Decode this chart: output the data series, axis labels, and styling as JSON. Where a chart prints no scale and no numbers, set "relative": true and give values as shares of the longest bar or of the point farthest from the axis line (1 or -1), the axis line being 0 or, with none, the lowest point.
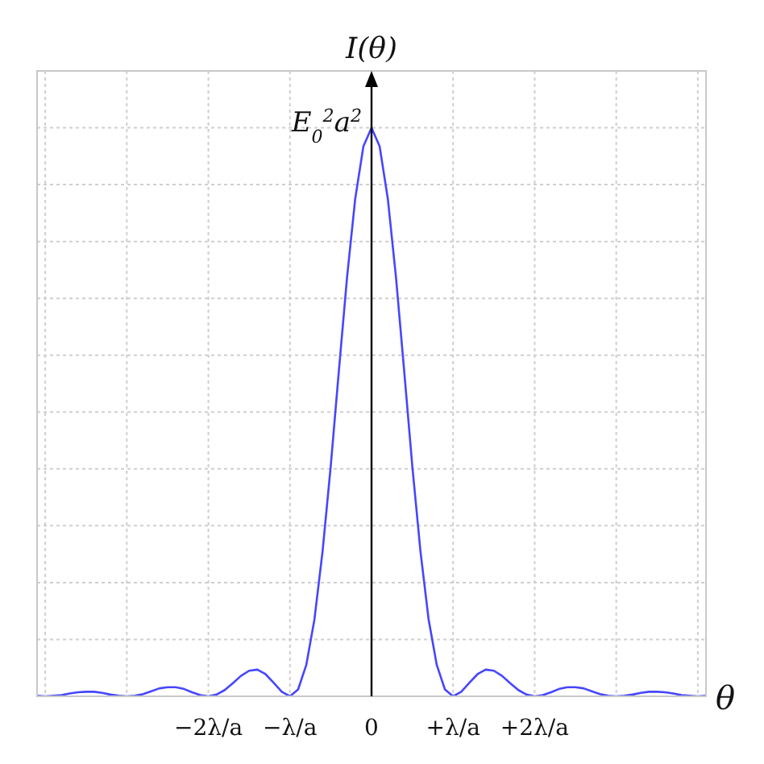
{
  "chart_data": {
    "type": "line",
    "relative": true,
    "xlabel": "θ",
    "ylabel": "I(θ)",
    "annotations": [
      {
        "text": "E$_{0}$$^{2}$a$^{2}$",
        "x": "0",
        "y": 1
      }
    ],
    "grid": true,
    "marker": "none",
    "line_style": "solid",
    "categories": [
      null,
      null,
      null,
      null,
      null,
      null,
      null,
      null,
      null,
      null,
      null,
      null,
      null,
      null,
      null,
      null,
      null,
      null,
      null,
      null,
      null,
      "−2λ/a",
      null,
      null,
      null,
      null,
      null,
      null,
      null,
      null,
      null,
      "−λ/a",
      null,
      null,
      null,
      null,
      null,
      null,
      null,
      null,
      null,
      "0",
      null,
      null,
      null,
      null,
      null,
      null,
      null,
      null,
      null,
      "+λ/a",
      null,
      null,
      null,
      null,
      null,
      null,
      null,
      null,
      null,
      "+2λ/a",
      null,
      null,
      null,
      null,
      null,
      null,
      null,
      null,
      null,
      null,
      null,
      null,
      null,
      null,
      null,
      null,
      null,
      null,
      null,
      null,
      null
    ],
    "series": [
      {
        "color": "#4646ff",
        "values": [
          0.001,
          0,
          0.001,
          0.002,
          0.005,
          0.007,
          0.008,
          0.008,
          0.006,
          0.003,
          0.001,
          0,
          0.001,
          0.004,
          0.009,
          0.014,
          0.016,
          0.016,
          0.013,
          0.007,
          0.002,
          0,
          0.003,
          0.011,
          0.023,
          0.036,
          0.045,
          0.047,
          0.039,
          0.024,
          0.008,
          0,
          0.012,
          0.055,
          0.135,
          0.255,
          0.405,
          0.573,
          0.737,
          0.875,
          0.967,
          1,
          0.967,
          0.875,
          0.737,
          0.573,
          0.405,
          0.255,
          0.135,
          0.055,
          0.012,
          0,
          0.008,
          0.024,
          0.039,
          0.047,
          0.045,
          0.036,
          0.023,
          0.011,
          0.003,
          0,
          0.002,
          0.007,
          0.013,
          0.016,
          0.016,
          0.014,
          0.009,
          0.004,
          0.001,
          0,
          0.001,
          0.003,
          0.006,
          0.008,
          0.008,
          0.007,
          0.005,
          0.002,
          0.001,
          0,
          0.001
        ]
      }
    ]
  }
}
